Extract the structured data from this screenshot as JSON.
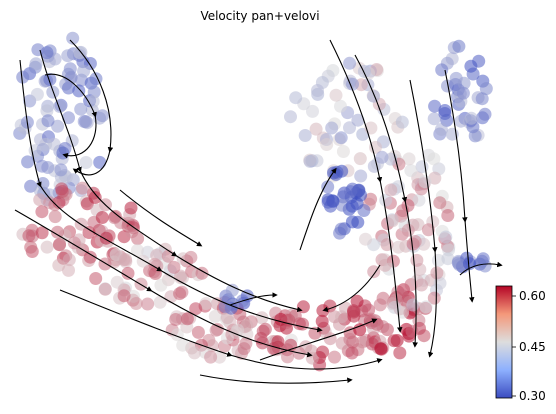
{
  "chart_data": {
    "type": "scatter",
    "title": "Velocity pan+velovi",
    "xlabel": "",
    "ylabel": "",
    "overlay": "velocity-streamlines",
    "color_scale": {
      "name": "coolwarm",
      "min": 0.3,
      "max": 0.62,
      "ticks": [
        "0.60",
        "0.45",
        "0.30"
      ],
      "low_color": "#3b4cc0",
      "mid_color": "#dddddd",
      "high_color": "#b40426"
    },
    "axes_visible": false
  }
}
